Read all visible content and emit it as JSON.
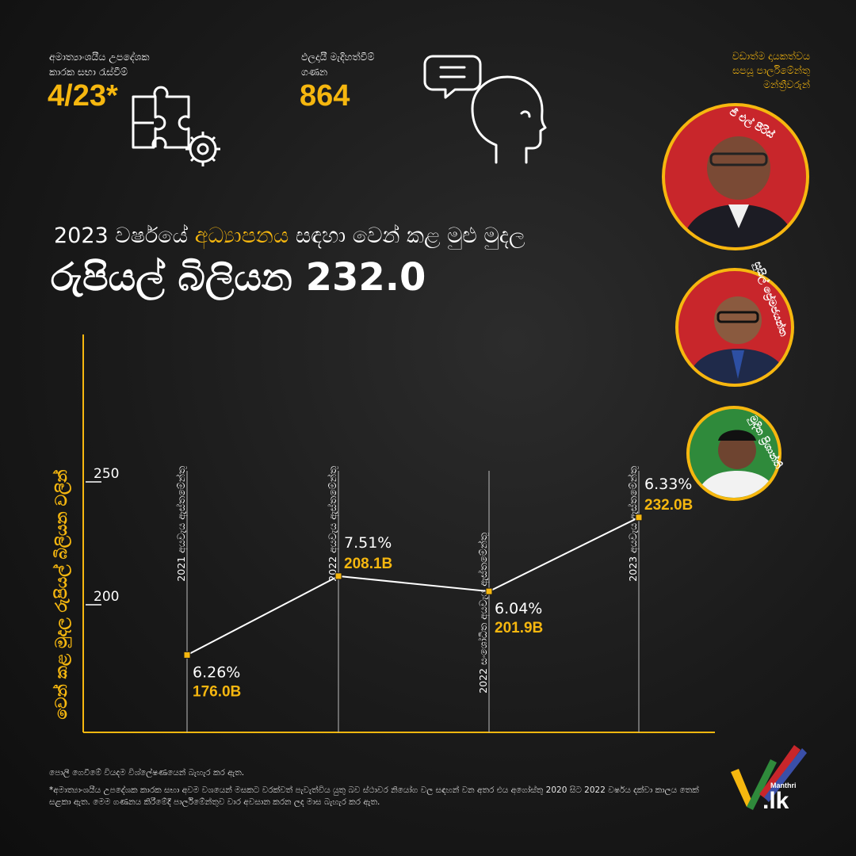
{
  "stats": {
    "consultative": {
      "label": "අමාත්‍යාංශයීය උපදේශක\nකාරක සභා රැස්වීම්",
      "value": "4/23*",
      "icon": "puzzle-gear-icon"
    },
    "questions": {
      "label": "ඵලදායී මැදිහත්වීම්\nගණන",
      "value": "864",
      "icon": "speaking-head-icon"
    }
  },
  "mp_header": "වඩාත්ම දායකත්වය\nසපයූ පාර්ලිමේන්තු\nමන්ත්‍රීවරුන්",
  "mps": [
    {
      "name": "ජී එල් පීරිස්",
      "bg": "#c8262b"
    },
    {
      "name": "සුසිල් ප්‍රේමජයන්ත",
      "bg": "#c8262b"
    },
    {
      "name": "මුදිත ප්‍රිශාන්ති",
      "bg": "#2f8a3b"
    }
  ],
  "headline": {
    "line1_pre": "2023 වර්ෂයේ ",
    "line1_highlight": "අධ්‍යාපනය",
    "line1_post": " සඳහා වෙන් කළ මුළු මුදල",
    "line2": "රුපියල් බිලියන 232.0"
  },
  "colors": {
    "accent": "#f6b70f",
    "line": "#ffffff",
    "bg": "#1a1a1a",
    "red": "#c8262b",
    "green": "#2f8a3b"
  },
  "chart_data": {
    "type": "line",
    "ylabel": "වෙන් කළ මුදල රුපියල් බිලියන වලින්",
    "yticks": [
      200,
      250
    ],
    "ylim": [
      150,
      300
    ],
    "categories": [
      "2021 අයවැය ඇස්තමේන්තු",
      "2022 අයවැය ඇස්තමේන්තු",
      "2022 සංශෝධිත අයවැය ඇස්තමේන්තු",
      "2023 අයවැය ඇස්තමේන්තු"
    ],
    "values": [
      176.0,
      208.1,
      201.9,
      232.0
    ],
    "value_labels": [
      "176.0B",
      "208.1B",
      "201.9B",
      "232.0B"
    ],
    "percent_labels": [
      "6.26%",
      "7.51%",
      "6.04%",
      "6.33%"
    ],
    "grid": false
  },
  "footnotes": {
    "line1": "පොලී ගෙවීමේ වියදම විශ්ලේෂණයෙන් බැහැර කර ඇත.",
    "line2": "*අමාත්‍යාංශයීය උපදේශක කාරක සභා අවම වශයෙන් මසකට වරක්වත් පැවැත්විය යුතු බව ස්ථාවර නියෝග වල සඳහන් වන අතර එය අගෝස්තු 2020 සිට 2022 වර්ෂය දක්වා කාලය තෙක් සළකා ඇත. මෙම ගණනය කිරීමේදී පාර්ලිමේන්තුව වාර අවසාන කරන ලද මාස බැහැර කර ඇත."
  },
  "brand": {
    "small": "Manthri",
    "big": ".lk"
  }
}
